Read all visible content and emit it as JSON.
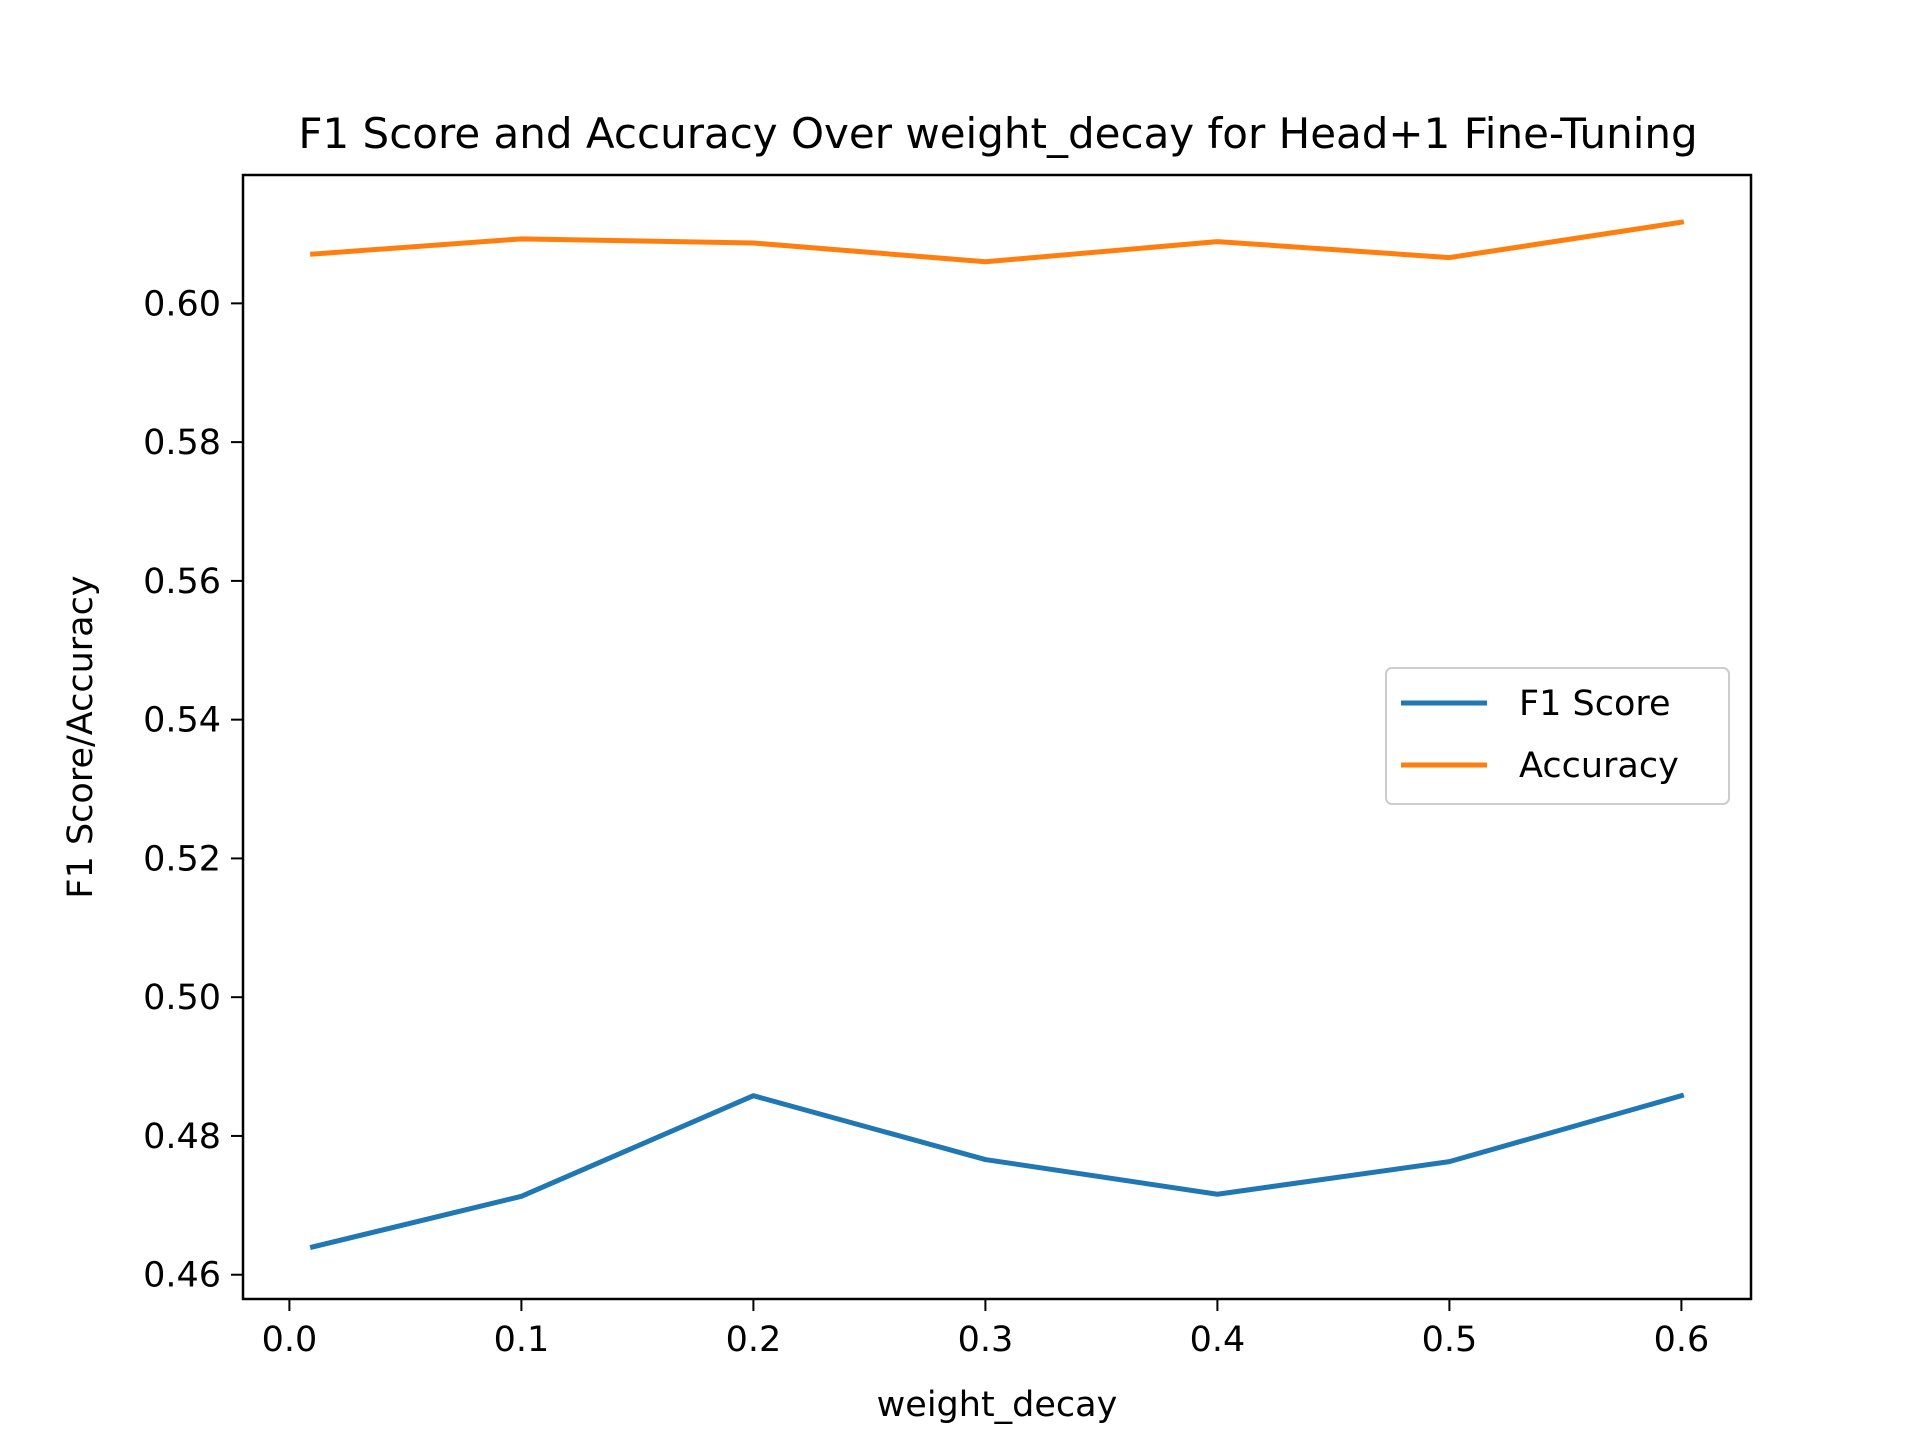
{
  "chart_data": {
    "type": "line",
    "title": "F1 Score and Accuracy Over weight_decay for Head+1 Fine-Tuning",
    "xlabel": "weight_decay",
    "ylabel": "F1 Score/Accuracy",
    "x": [
      0.01,
      0.1,
      0.2,
      0.3,
      0.4,
      0.5,
      0.6
    ],
    "xlim": [
      -0.02,
      0.63
    ],
    "ylim": [
      0.4565,
      0.6185
    ],
    "xticks": [
      0.0,
      0.1,
      0.2,
      0.3,
      0.4,
      0.5,
      0.6
    ],
    "xtick_labels": [
      "0.0",
      "0.1",
      "0.2",
      "0.3",
      "0.4",
      "0.5",
      "0.6"
    ],
    "yticks": [
      0.46,
      0.48,
      0.5,
      0.52,
      0.54,
      0.56,
      0.58,
      0.6
    ],
    "ytick_labels": [
      "0.46",
      "0.48",
      "0.50",
      "0.52",
      "0.54",
      "0.56",
      "0.58",
      "0.60"
    ],
    "grid": false,
    "legend_position": "center-right",
    "series": [
      {
        "name": "F1 Score",
        "color": "#1f77b4",
        "values": [
          0.464,
          0.4713,
          0.4858,
          0.4766,
          0.4716,
          0.4763,
          0.4858
        ]
      },
      {
        "name": "Accuracy",
        "color": "#ff7f0e",
        "values": [
          0.6071,
          0.6093,
          0.6087,
          0.606,
          0.6089,
          0.6066,
          0.6117
        ]
      }
    ]
  }
}
